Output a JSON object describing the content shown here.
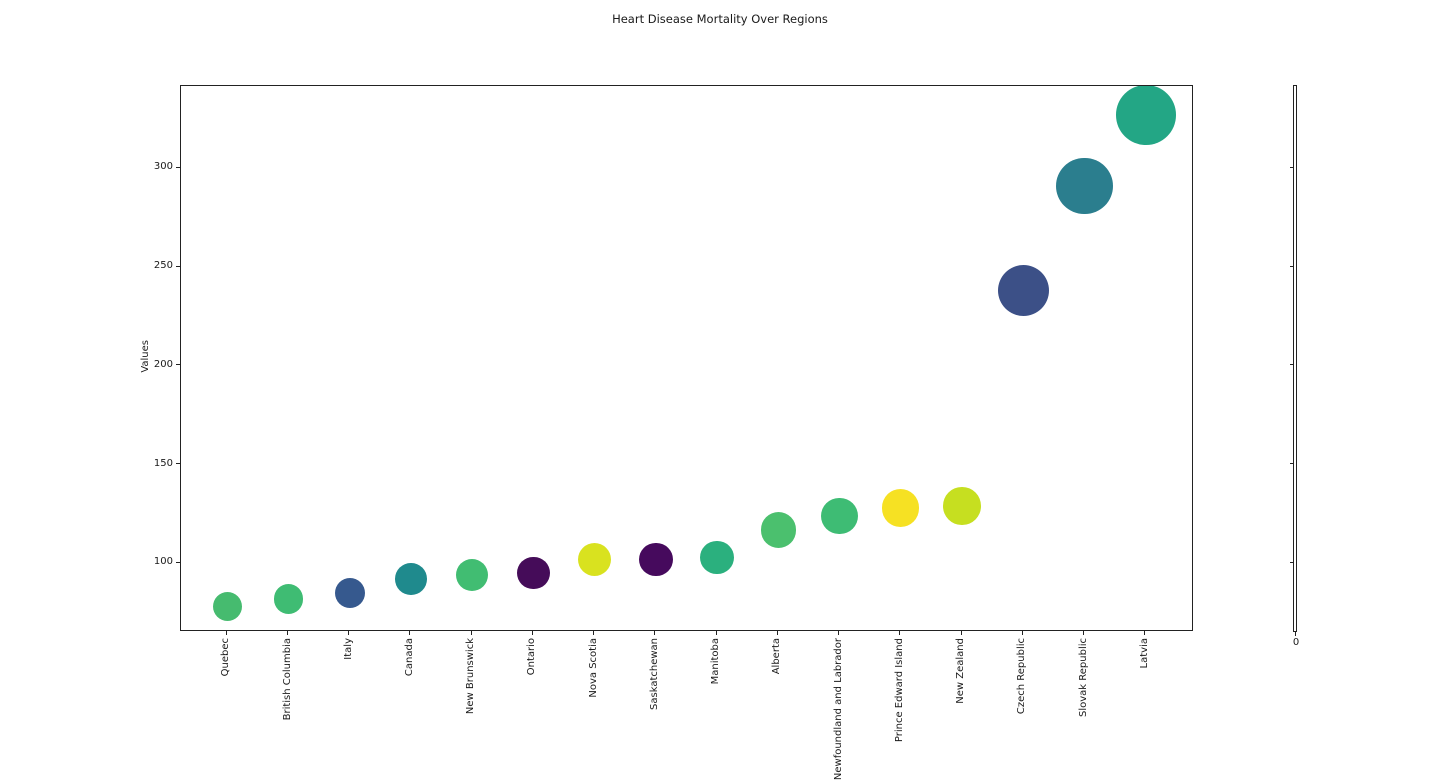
{
  "chart_data": {
    "type": "scatter",
    "title": "Heart Disease Mortality Over Regions",
    "xlabel": "",
    "ylabel": "Values",
    "categories": [
      "Quebec",
      "British Columbia",
      "Italy",
      "Canada",
      "New Brunswick",
      "Ontario",
      "Nova Scotia",
      "Saskatchewan",
      "Manitoba",
      "Alberta",
      "Newfoundland and Labrador",
      "Prince Edward Island",
      "New Zealand",
      "Czech Republic",
      "Slovak Republic",
      "Latvia"
    ],
    "values": [
      78,
      82,
      85,
      92,
      94,
      95,
      102,
      102,
      103,
      117,
      124,
      128,
      129,
      238,
      291,
      327
    ],
    "colors": [
      "#46bb6f",
      "#3fbc73",
      "#36598e",
      "#1f8a8d",
      "#41bd72",
      "#450c59",
      "#d9e21f",
      "#460a5d",
      "#2bb07e",
      "#4bc06e",
      "#3ebc74",
      "#f6e123",
      "#c6df20",
      "#3c5087",
      "#2b7e8e",
      "#23a685"
    ],
    "yticks": [
      100,
      150,
      200,
      250,
      300
    ],
    "ylim": [
      65,
      343
    ],
    "bubble_size": "area proportional to value",
    "grid": false,
    "legend_position": "none",
    "x_tick_label_rotation": 90
  },
  "secondary_axis": {
    "x_tick_label": "0",
    "yticks_unlabeled": [
      100,
      150,
      200,
      250,
      300
    ]
  }
}
